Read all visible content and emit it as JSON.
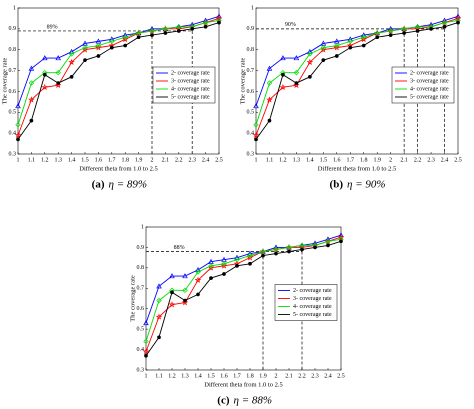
{
  "chart_data": [
    {
      "type": "line",
      "caption_label": "(a)",
      "caption_text": "η = 89%",
      "xlabel": "Different theta from 1.0 to 2.5",
      "ylabel": "The coverage rate",
      "x": [
        1,
        1.1,
        1.2,
        1.3,
        1.4,
        1.5,
        1.6,
        1.7,
        1.8,
        1.9,
        2,
        2.1,
        2.2,
        2.3,
        2.4,
        2.5
      ],
      "xlim": [
        1,
        2.5
      ],
      "xticks": [
        1,
        1.1,
        1.2,
        1.3,
        1.4,
        1.5,
        1.6,
        1.7,
        1.8,
        1.9,
        2,
        2.1,
        2.2,
        2.3,
        2.4,
        2.5
      ],
      "ylim": [
        0.3,
        1
      ],
      "yticks": [
        0.3,
        0.4,
        0.5,
        0.6,
        0.7,
        0.8,
        0.9,
        1
      ],
      "grid": false,
      "legend": "center right",
      "reference_lines": {
        "y": 0.89,
        "label": "89%",
        "x": [
          2,
          2.3
        ]
      },
      "series": [
        {
          "name": "2- coverage rate",
          "color": "#0000ff",
          "marker": "triangle",
          "values": [
            0.53,
            0.71,
            0.76,
            0.76,
            0.79,
            0.83,
            0.84,
            0.85,
            0.87,
            0.88,
            0.9,
            0.9,
            0.91,
            0.92,
            0.94,
            0.96
          ]
        },
        {
          "name": "3- coverage rate",
          "color": "#ff0000",
          "marker": "star",
          "values": [
            0.39,
            0.56,
            0.62,
            0.63,
            0.74,
            0.8,
            0.81,
            0.82,
            0.85,
            0.88,
            0.89,
            0.9,
            0.9,
            0.91,
            0.93,
            0.95
          ]
        },
        {
          "name": "4- coverage rate",
          "color": "#00dd00",
          "marker": "diamond",
          "values": [
            0.44,
            0.64,
            0.69,
            0.69,
            0.78,
            0.81,
            0.82,
            0.84,
            0.86,
            0.88,
            0.89,
            0.9,
            0.91,
            0.91,
            0.93,
            0.94
          ]
        },
        {
          "name": "5- coverage rate",
          "color": "#000000",
          "marker": "circle",
          "values": [
            0.37,
            0.46,
            0.68,
            0.64,
            0.67,
            0.75,
            0.77,
            0.81,
            0.82,
            0.86,
            0.87,
            0.88,
            0.89,
            0.9,
            0.91,
            0.93
          ]
        }
      ]
    },
    {
      "type": "line",
      "caption_label": "(b)",
      "caption_text": "η = 90%",
      "xlabel": "Different theta from 1.0 to 2.5",
      "ylabel": "The coverage rate",
      "x": [
        1,
        1.1,
        1.2,
        1.3,
        1.4,
        1.5,
        1.6,
        1.7,
        1.8,
        1.9,
        2,
        2.1,
        2.2,
        2.3,
        2.4,
        2.5
      ],
      "xlim": [
        1,
        2.5
      ],
      "xticks": [
        1,
        1.1,
        1.2,
        1.3,
        1.4,
        1.5,
        1.6,
        1.7,
        1.8,
        1.9,
        2,
        2.1,
        2.2,
        2.3,
        2.4,
        2.5
      ],
      "ylim": [
        0.3,
        1
      ],
      "yticks": [
        0.3,
        0.4,
        0.5,
        0.6,
        0.7,
        0.8,
        0.9,
        1
      ],
      "grid": false,
      "legend": "center right",
      "reference_lines": {
        "y": 0.9,
        "label": "90%",
        "x": [
          2.1,
          2.2,
          2.4
        ]
      },
      "series": [
        {
          "name": "2- coverage rate",
          "color": "#0000ff",
          "marker": "triangle",
          "values": [
            0.53,
            0.71,
            0.76,
            0.76,
            0.79,
            0.83,
            0.84,
            0.85,
            0.87,
            0.88,
            0.9,
            0.9,
            0.91,
            0.92,
            0.94,
            0.96
          ]
        },
        {
          "name": "3- coverage rate",
          "color": "#ff0000",
          "marker": "star",
          "values": [
            0.39,
            0.56,
            0.62,
            0.63,
            0.74,
            0.8,
            0.81,
            0.82,
            0.85,
            0.88,
            0.89,
            0.9,
            0.9,
            0.91,
            0.93,
            0.95
          ]
        },
        {
          "name": "4- coverage rate",
          "color": "#00dd00",
          "marker": "diamond",
          "values": [
            0.44,
            0.64,
            0.69,
            0.69,
            0.78,
            0.81,
            0.82,
            0.84,
            0.86,
            0.88,
            0.89,
            0.9,
            0.91,
            0.91,
            0.93,
            0.94
          ]
        },
        {
          "name": "5- coverage rate",
          "color": "#000000",
          "marker": "circle",
          "values": [
            0.37,
            0.46,
            0.68,
            0.64,
            0.67,
            0.75,
            0.77,
            0.81,
            0.82,
            0.86,
            0.87,
            0.88,
            0.89,
            0.9,
            0.91,
            0.93
          ]
        }
      ]
    },
    {
      "type": "line",
      "caption_label": "(c)",
      "caption_text": "η = 88%",
      "xlabel": "Different theta from 1.0 to 2.5",
      "ylabel": "The coverage rate",
      "x": [
        1,
        1.1,
        1.2,
        1.3,
        1.4,
        1.5,
        1.6,
        1.7,
        1.8,
        1.9,
        2,
        2.1,
        2.2,
        2.3,
        2.4,
        2.5
      ],
      "xlim": [
        1,
        2.5
      ],
      "xticks": [
        1,
        1.1,
        1.2,
        1.3,
        1.4,
        1.5,
        1.6,
        1.7,
        1.8,
        1.9,
        2,
        2.1,
        2.2,
        2.3,
        2.4,
        2.5
      ],
      "ylim": [
        0.3,
        1
      ],
      "yticks": [
        0.3,
        0.4,
        0.5,
        0.6,
        0.7,
        0.8,
        0.9,
        1
      ],
      "grid": false,
      "legend": "center right",
      "reference_lines": {
        "y": 0.88,
        "label": "88%",
        "x": [
          1.9,
          2.2
        ]
      },
      "series": [
        {
          "name": "2- coverage rate",
          "color": "#0000ff",
          "marker": "triangle",
          "values": [
            0.53,
            0.71,
            0.76,
            0.76,
            0.79,
            0.83,
            0.84,
            0.85,
            0.87,
            0.88,
            0.9,
            0.9,
            0.91,
            0.92,
            0.94,
            0.96
          ]
        },
        {
          "name": "3- coverage rate",
          "color": "#ff0000",
          "marker": "star",
          "values": [
            0.39,
            0.56,
            0.62,
            0.63,
            0.74,
            0.8,
            0.81,
            0.82,
            0.85,
            0.88,
            0.89,
            0.9,
            0.9,
            0.91,
            0.93,
            0.95
          ]
        },
        {
          "name": "4- coverage rate",
          "color": "#00dd00",
          "marker": "diamond",
          "values": [
            0.44,
            0.64,
            0.69,
            0.69,
            0.78,
            0.81,
            0.82,
            0.84,
            0.86,
            0.88,
            0.89,
            0.9,
            0.91,
            0.91,
            0.93,
            0.94
          ]
        },
        {
          "name": "5- coverage rate",
          "color": "#000000",
          "marker": "circle",
          "values": [
            0.37,
            0.46,
            0.68,
            0.64,
            0.67,
            0.75,
            0.77,
            0.81,
            0.82,
            0.86,
            0.87,
            0.88,
            0.89,
            0.9,
            0.91,
            0.93
          ]
        }
      ]
    }
  ]
}
